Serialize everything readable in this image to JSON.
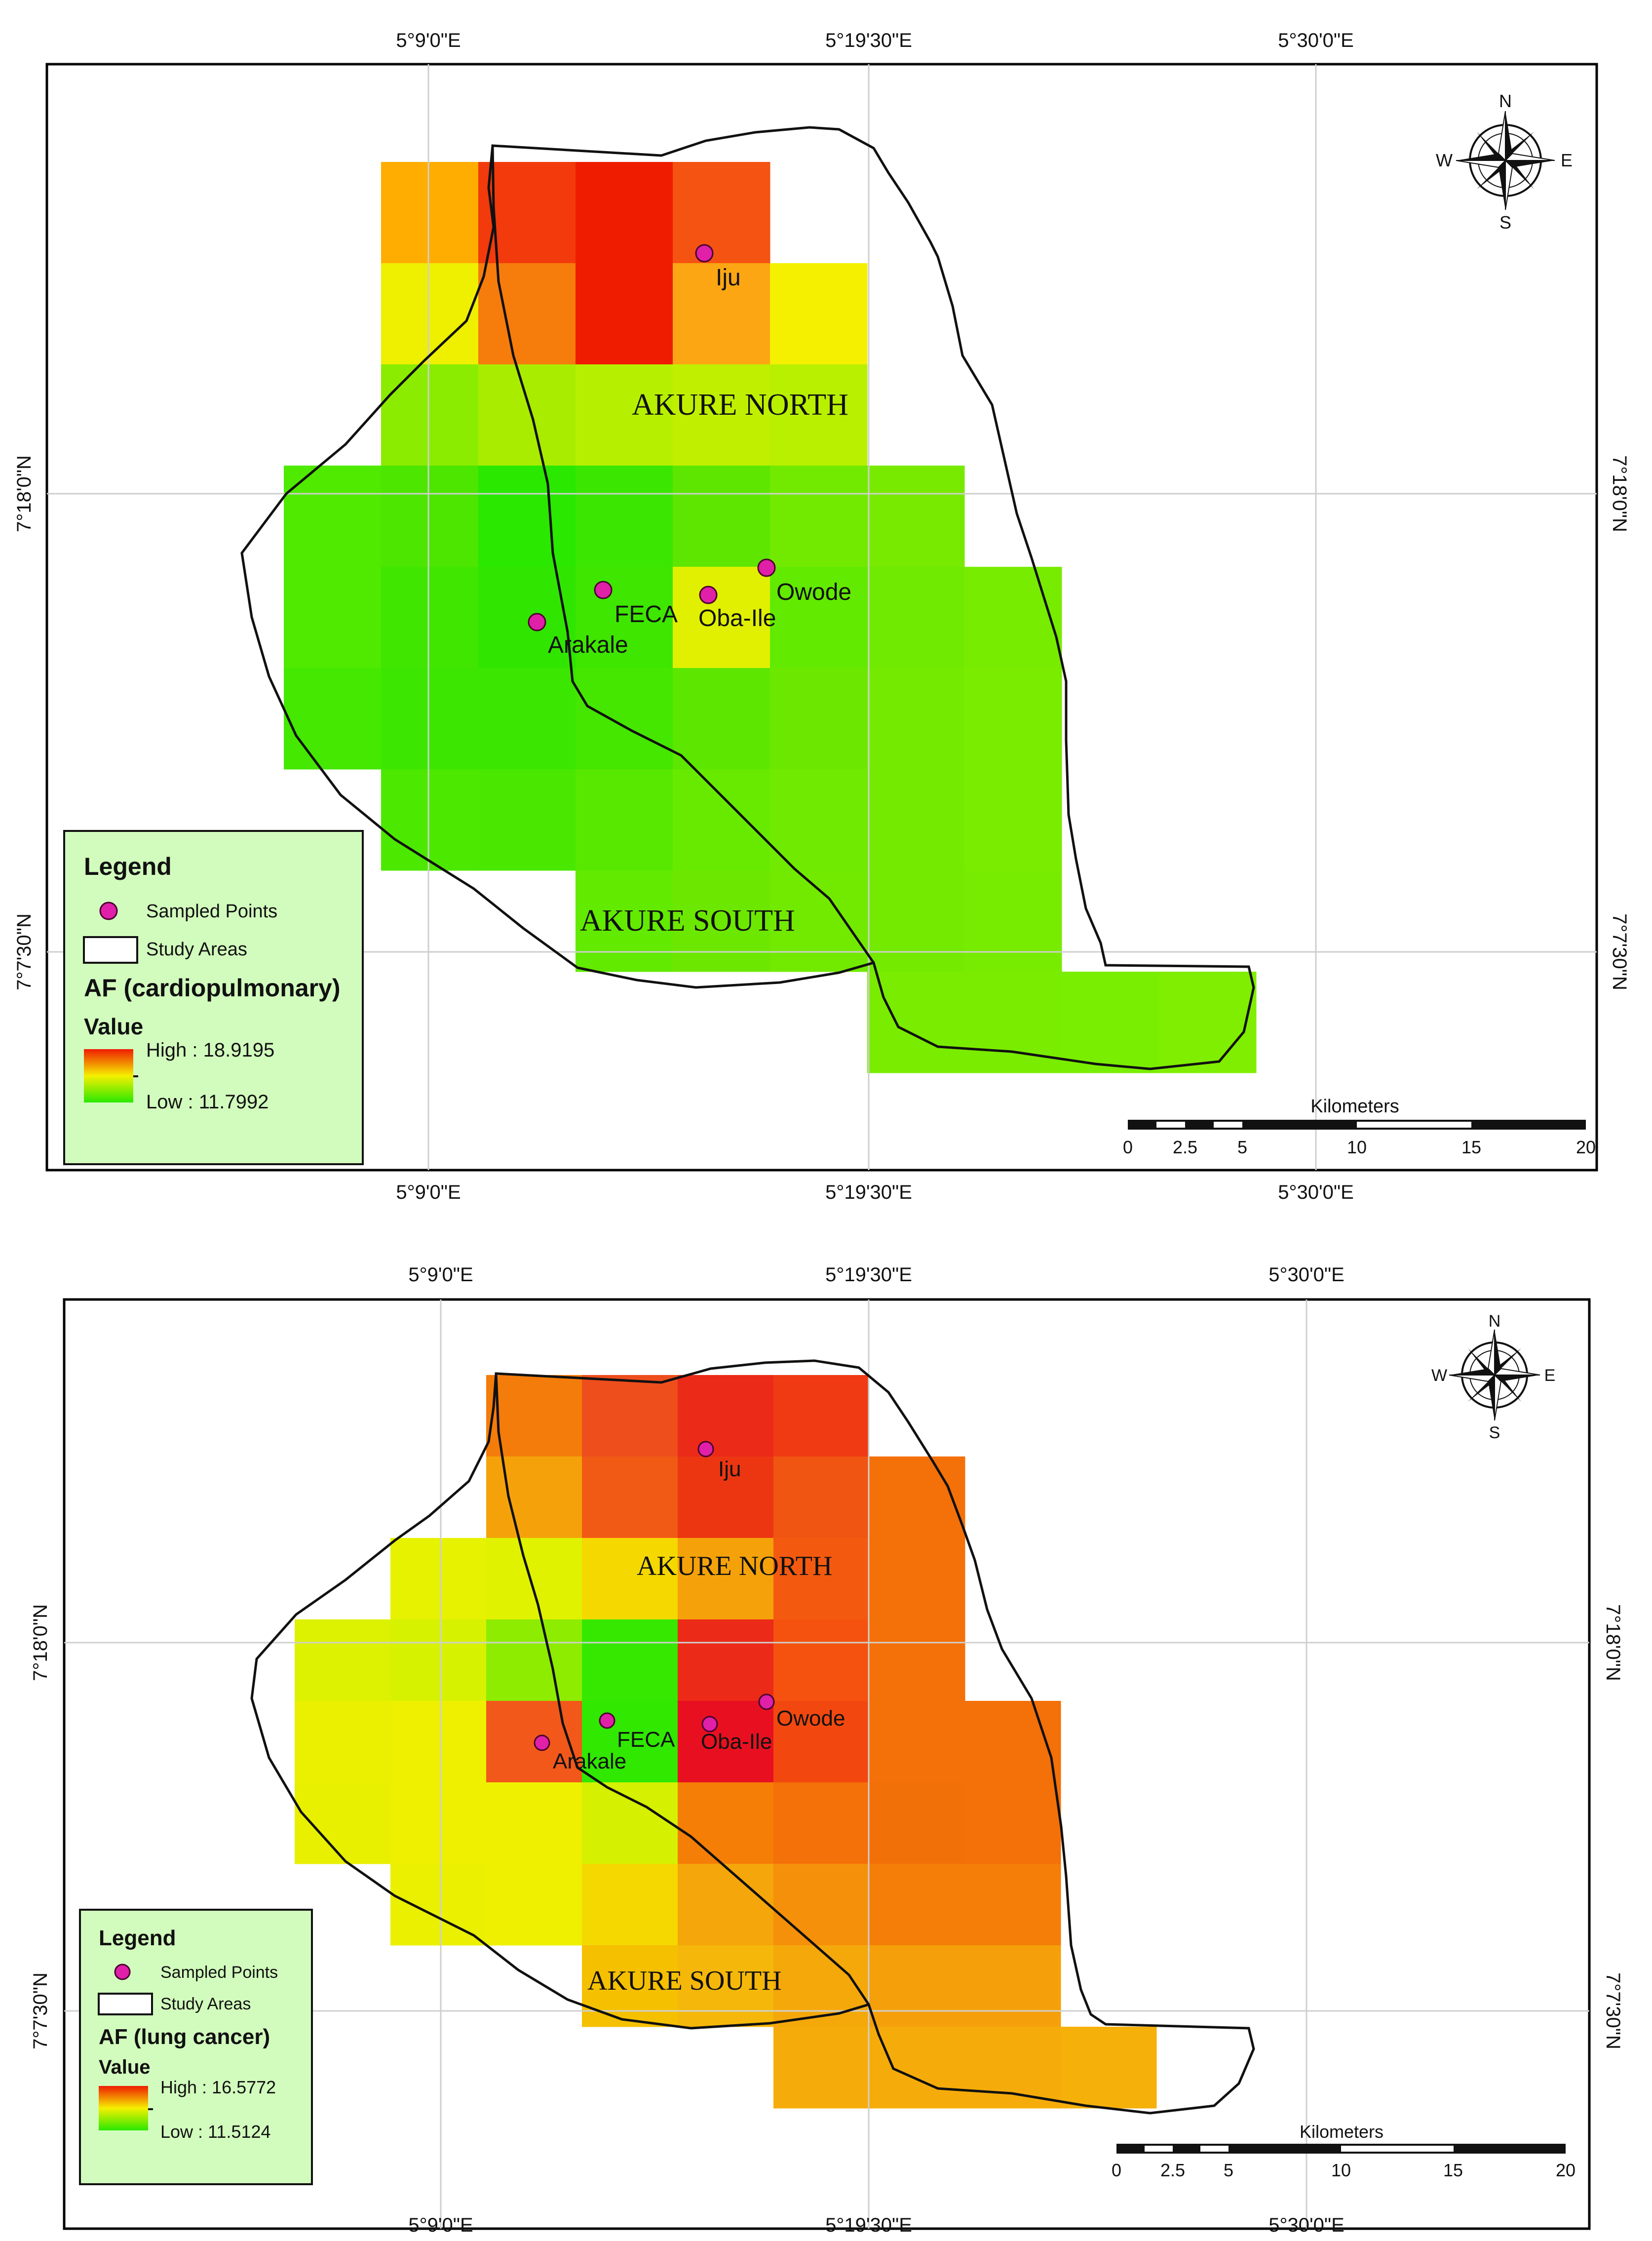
{
  "maps": [
    {
      "id": "cardio",
      "lon_ticks": [
        "5°9'0\"E",
        "5°19'30\"E",
        "5°30'0\"E"
      ],
      "lat_ticks": [
        "7°18'0\"N",
        "7°7'30\"N"
      ],
      "areas": [
        "AKURE NORTH",
        "AKURE SOUTH"
      ],
      "points": [
        "Iju",
        "Owode",
        "FECA",
        "Oba-Ile",
        "Arakale"
      ],
      "legend": {
        "title": "Legend",
        "sampled_points": "Sampled Points",
        "study_areas": "Study Areas",
        "layer": "AF (cardiopulmonary)",
        "value": "Value",
        "high": "High : 18.9195",
        "low": "Low : 11.7992"
      },
      "grid": [
        [
          null,
          "#ffad00",
          "#f23a0c",
          "#ef1c00",
          "#f55312",
          null,
          null,
          null,
          null,
          null
        ],
        [
          null,
          "#efef00",
          "#f67c0c",
          "#ef1c00",
          "#fca614",
          "#f5f000",
          null,
          null,
          null,
          null
        ],
        [
          null,
          "#8bec00",
          "#a9ec00",
          "#b6f000",
          "#c0f000",
          "#b9f000",
          null,
          null,
          null,
          null
        ],
        [
          "#50ea00",
          "#4ce600",
          "#2ae800",
          "#3be600",
          "#5ee600",
          "#72ea00",
          "#78ea00",
          null,
          null,
          null
        ],
        [
          "#50ea00",
          "#40e600",
          "#30e600",
          "#3ee600",
          "#e0f000",
          "#62ea00",
          "#70ea00",
          "#78ec00",
          null,
          null
        ],
        [
          "#44e800",
          "#3de600",
          "#3be600",
          "#45e600",
          "#5ce600",
          "#6ce800",
          "#74ea00",
          "#7aec00",
          null,
          null
        ],
        [
          null,
          "#4ce800",
          "#4ae800",
          "#58e800",
          "#68ea00",
          "#70ea00",
          "#74ea00",
          "#7aec00",
          null,
          null
        ],
        [
          null,
          null,
          null,
          "#62ea00",
          "#6ce800",
          "#72ea00",
          "#74ea00",
          "#78ec00",
          null,
          null
        ],
        [
          null,
          null,
          null,
          null,
          null,
          null,
          "#7aec00",
          "#7aec00",
          "#7aee00",
          "#80ee00"
        ]
      ]
    },
    {
      "id": "lung",
      "lon_ticks": [
        "5°9'0\"E",
        "5°19'30\"E",
        "5°30'0\"E"
      ],
      "lat_ticks": [
        "7°18'0\"N",
        "7°7'30\"N"
      ],
      "areas": [
        "AKURE NORTH",
        "AKURE SOUTH"
      ],
      "points": [
        "Iju",
        "Owode",
        "FECA",
        "Oba-Ile",
        "Arakale"
      ],
      "legend": {
        "title": "Legend",
        "sampled_points": "Sampled Points",
        "study_areas": "Study Areas",
        "layer": "AF (lung cancer)",
        "value": "Value",
        "high": "High : 16.5772",
        "low": "Low : 11.5124"
      },
      "grid": [
        [
          null,
          null,
          "#f47c0a",
          "#ee4d1c",
          "#ec2a18",
          "#ef3a14",
          null,
          null,
          null
        ],
        [
          null,
          null,
          "#f5a20a",
          "#f05a14",
          "#ec3612",
          "#f05512",
          "#f47008",
          null,
          null
        ],
        [
          null,
          "#e7f200",
          "#e0f200",
          "#f5d800",
          "#f5a20a",
          "#f35a10",
          "#f47008",
          null,
          null
        ],
        [
          "#ddf200",
          "#d7f200",
          "#8eec00",
          "#36e800",
          "#ec2a18",
          "#f4520e",
          "#f47008",
          null,
          null
        ],
        [
          "#eaf000",
          "#eef000",
          "#f2581a",
          "#30e800",
          "#e81020",
          "#f24810",
          "#f47008",
          "#f47008",
          null
        ],
        [
          "#e8f000",
          "#eff000",
          "#eef000",
          "#d5f000",
          "#f57e06",
          "#f47008",
          "#f27008",
          "#f47008",
          null
        ],
        [
          null,
          "#eaf000",
          "#eef000",
          "#f5d800",
          "#f5a60a",
          "#f5900a",
          "#f47e08",
          "#f47e08",
          null
        ],
        [
          null,
          null,
          null,
          "#f5c000",
          "#f5b80a",
          "#f5a80a",
          "#f5a00a",
          "#f5a00a",
          null
        ],
        [
          null,
          null,
          null,
          null,
          null,
          "#f5ac0a",
          "#f5ac0a",
          "#f5ac0a",
          "#f5b00a"
        ]
      ]
    }
  ],
  "scale": {
    "title": "Kilometers",
    "labels": [
      "0",
      "2.5",
      "5",
      "10",
      "15",
      "20"
    ]
  },
  "north_arrow": {
    "n": "N",
    "s": "S",
    "e": "E",
    "w": "W"
  }
}
